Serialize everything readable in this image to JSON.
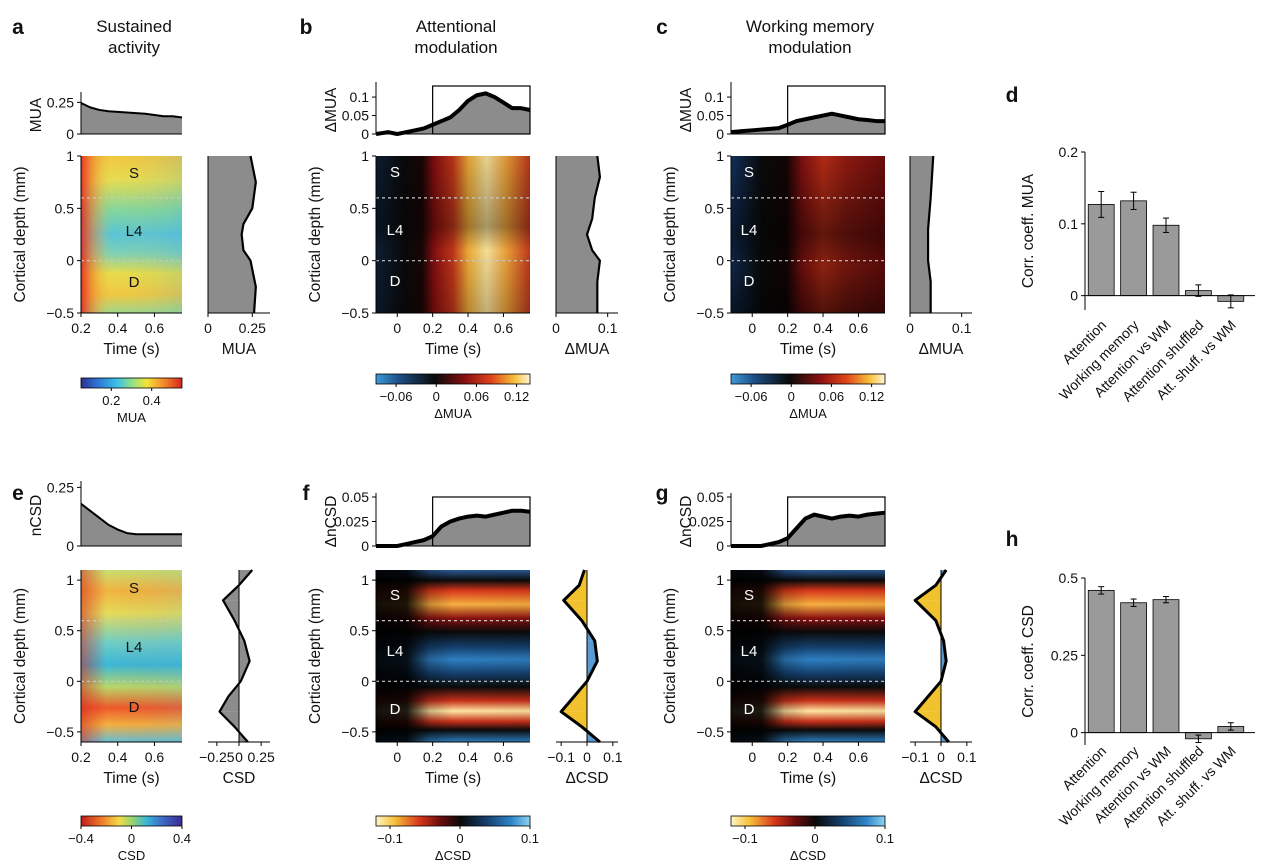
{
  "figure": {
    "columns": [
      {
        "letter": "a",
        "title": [
          "Sustained",
          "activity"
        ]
      },
      {
        "letter": "b",
        "title": [
          "Attentional",
          "modulation"
        ]
      },
      {
        "letter": "c",
        "title": [
          "Working memory",
          "modulation"
        ]
      }
    ],
    "row_letters": {
      "d": "d",
      "e": "e",
      "f": "f",
      "g": "g",
      "h": "h"
    },
    "layers": [
      "S",
      "L4",
      "D"
    ],
    "colors": {
      "profile_fill": "#8c8c8c",
      "sink_fill": "#f2c12e",
      "source_fill": "#5b9bd5",
      "bar_fill": "#9a9a9a",
      "dashed_line": "#c8c8c8"
    }
  },
  "chart_data": [
    {
      "id": "a-top",
      "type": "area",
      "ylabel": "MUA",
      "x": [
        0.2,
        0.25,
        0.3,
        0.35,
        0.4,
        0.45,
        0.5,
        0.55,
        0.6,
        0.65,
        0.7,
        0.75
      ],
      "y": [
        0.245,
        0.21,
        0.19,
        0.18,
        0.175,
        0.17,
        0.165,
        0.16,
        0.15,
        0.14,
        0.14,
        0.13
      ],
      "xlim": [
        0.2,
        0.75
      ],
      "ylim": [
        0,
        0.3
      ],
      "yticks": [
        "0",
        "0.25"
      ]
    },
    {
      "id": "a-map",
      "type": "heatmap",
      "xlabel": "Time (s)",
      "ylabel": "Cortical depth (mm)",
      "xticks": [
        "0.2",
        "0.4",
        "0.6"
      ],
      "yticks": [
        "1",
        "0.5",
        "0",
        "−0.5"
      ],
      "xlim": [
        0.2,
        0.75
      ],
      "ylim": [
        -0.5,
        1
      ],
      "layer_boundaries_mm": [
        0.6,
        0
      ],
      "colormap": "jet",
      "colorbar": {
        "ticks": [
          "0.2",
          "0.4"
        ],
        "label": "MUA",
        "range": [
          0.05,
          0.55
        ]
      }
    },
    {
      "id": "a-profile",
      "type": "area",
      "xlabel": "MUA",
      "xticks": [
        "0",
        "0.25"
      ],
      "depth": [
        1,
        0.75,
        0.5,
        0.35,
        0.25,
        0.1,
        0,
        -0.25,
        -0.5
      ],
      "values": [
        0.24,
        0.27,
        0.25,
        0.2,
        0.19,
        0.2,
        0.24,
        0.27,
        0.26
      ],
      "xlim": [
        0,
        0.35
      ]
    },
    {
      "id": "b-top",
      "type": "area",
      "ylabel": "ΔMUA",
      "x": [
        -0.12,
        -0.05,
        0,
        0.05,
        0.1,
        0.15,
        0.2,
        0.25,
        0.3,
        0.35,
        0.4,
        0.45,
        0.5,
        0.55,
        0.6,
        0.65,
        0.7,
        0.75
      ],
      "y": [
        0,
        0.005,
        0,
        0.005,
        0.01,
        0.015,
        0.025,
        0.035,
        0.045,
        0.065,
        0.09,
        0.105,
        0.11,
        0.1,
        0.085,
        0.07,
        0.07,
        0.065
      ],
      "xlim": [
        -0.12,
        0.75
      ],
      "ylim": [
        0,
        0.13
      ],
      "yticks": [
        "0",
        "0.05",
        "0.1"
      ],
      "highlight_window": [
        0.2,
        0.75
      ]
    },
    {
      "id": "b-map",
      "type": "heatmap",
      "xlabel": "Time (s)",
      "ylabel": "Cortical depth (mm)",
      "xticks": [
        "0",
        "0.2",
        "0.4",
        "0.6"
      ],
      "yticks": [
        "1",
        "0.5",
        "0",
        "−0.5"
      ],
      "xlim": [
        -0.12,
        0.75
      ],
      "ylim": [
        -0.5,
        1
      ],
      "layer_boundaries_mm": [
        0.6,
        0
      ],
      "colormap": "blue-black-hot",
      "colorbar": {
        "ticks": [
          "−0.06",
          "0",
          "0.06",
          "0.12"
        ],
        "label": "ΔMUA",
        "range": [
          -0.09,
          0.14
        ]
      }
    },
    {
      "id": "b-profile",
      "type": "area",
      "xlabel": "ΔMUA",
      "xticks": [
        "0",
        "0.1"
      ],
      "depth": [
        1,
        0.8,
        0.6,
        0.4,
        0.25,
        0.1,
        0,
        -0.2,
        -0.5
      ],
      "values": [
        0.08,
        0.085,
        0.075,
        0.07,
        0.06,
        0.07,
        0.085,
        0.08,
        0.08
      ],
      "xlim": [
        0,
        0.12
      ]
    },
    {
      "id": "c-top",
      "type": "area",
      "ylabel": "ΔMUA",
      "x": [
        -0.12,
        -0.05,
        0,
        0.05,
        0.1,
        0.15,
        0.2,
        0.25,
        0.3,
        0.35,
        0.4,
        0.45,
        0.5,
        0.55,
        0.6,
        0.65,
        0.7,
        0.75
      ],
      "y": [
        0.005,
        0.008,
        0.01,
        0.012,
        0.014,
        0.016,
        0.025,
        0.035,
        0.04,
        0.045,
        0.05,
        0.055,
        0.05,
        0.045,
        0.04,
        0.038,
        0.035,
        0.035
      ],
      "xlim": [
        -0.12,
        0.75
      ],
      "ylim": [
        0,
        0.13
      ],
      "yticks": [
        "0",
        "0.05",
        "0.1"
      ],
      "highlight_window": [
        0.2,
        0.75
      ]
    },
    {
      "id": "c-map",
      "type": "heatmap",
      "xlabel": "Time (s)",
      "ylabel": "Cortical depth (mm)",
      "xticks": [
        "0",
        "0.2",
        "0.4",
        "0.6"
      ],
      "yticks": [
        "1",
        "0.5",
        "0",
        "−0.5"
      ],
      "xlim": [
        -0.12,
        0.75
      ],
      "ylim": [
        -0.5,
        1
      ],
      "layer_boundaries_mm": [
        0.6,
        0
      ],
      "colormap": "blue-black-hot",
      "colorbar": {
        "ticks": [
          "−0.06",
          "0",
          "0.06",
          "0.12"
        ],
        "label": "ΔMUA",
        "range": [
          -0.09,
          0.14
        ]
      }
    },
    {
      "id": "c-profile",
      "type": "area",
      "xlabel": "ΔMUA",
      "xticks": [
        "0",
        "0.1"
      ],
      "depth": [
        1,
        0.6,
        0.3,
        0.15,
        0,
        -0.2,
        -0.5
      ],
      "values": [
        0.045,
        0.04,
        0.035,
        0.035,
        0.035,
        0.04,
        0.04
      ],
      "xlim": [
        0,
        0.12
      ]
    },
    {
      "id": "d-bars",
      "type": "bar",
      "ylabel": "Corr. coeff. MUA",
      "categories": [
        "Attention",
        "Working memory",
        "Attention vs WM",
        "Attention shuffled",
        "Att. shuff. vs WM"
      ],
      "values": [
        0.127,
        0.132,
        0.098,
        0.007,
        -0.008
      ],
      "errors": [
        0.018,
        0.012,
        0.01,
        0.008,
        0.009
      ],
      "ylim": [
        -0.02,
        0.2
      ],
      "ytick_values": [
        0,
        0.1,
        0.2
      ],
      "yticks": [
        "0",
        "0.1",
        "0.2"
      ]
    },
    {
      "id": "e-top",
      "type": "area",
      "ylabel": "nCSD",
      "x": [
        0.2,
        0.25,
        0.3,
        0.35,
        0.4,
        0.45,
        0.5,
        0.55,
        0.6,
        0.65,
        0.7,
        0.75
      ],
      "y": [
        0.18,
        0.15,
        0.12,
        0.09,
        0.07,
        0.055,
        0.05,
        0.05,
        0.05,
        0.05,
        0.05,
        0.05
      ],
      "xlim": [
        0.2,
        0.75
      ],
      "ylim": [
        0,
        0.26
      ],
      "yticks": [
        "0",
        "0.25"
      ]
    },
    {
      "id": "e-map",
      "type": "heatmap",
      "xlabel": "Time (s)",
      "ylabel": "Cortical depth (mm)",
      "xticks": [
        "0.2",
        "0.4",
        "0.6"
      ],
      "yticks": [
        "1",
        "0.5",
        "0",
        "−0.5"
      ],
      "xlim": [
        0.2,
        0.75
      ],
      "ylim": [
        -0.6,
        1.1
      ],
      "layer_boundaries_mm": [
        0.6,
        0
      ],
      "colormap": "red-yellow-green-blue",
      "colorbar": {
        "ticks": [
          "−0.4",
          "0",
          "0.4"
        ],
        "label": "CSD",
        "range": [
          -0.4,
          0.4
        ]
      }
    },
    {
      "id": "e-profile",
      "type": "area",
      "xlabel": "CSD",
      "xticks": [
        "−0.25",
        "0",
        "0.25"
      ],
      "depth": [
        1.1,
        0.95,
        0.8,
        0.6,
        0.4,
        0.2,
        0,
        -0.15,
        -0.3,
        -0.45,
        -0.6
      ],
      "values": [
        0.15,
        0.0,
        -0.18,
        -0.05,
        0.06,
        0.12,
        0.02,
        -0.12,
        -0.22,
        -0.05,
        0.1
      ],
      "xlim": [
        -0.35,
        0.35
      ]
    },
    {
      "id": "f-top",
      "type": "area",
      "ylabel": "ΔnCSD",
      "x": [
        -0.12,
        -0.05,
        0,
        0.05,
        0.1,
        0.15,
        0.2,
        0.25,
        0.3,
        0.35,
        0.4,
        0.45,
        0.5,
        0.55,
        0.6,
        0.65,
        0.7,
        0.75
      ],
      "y": [
        0,
        0,
        0,
        0.002,
        0.004,
        0.006,
        0.01,
        0.02,
        0.025,
        0.028,
        0.03,
        0.031,
        0.03,
        0.032,
        0.034,
        0.036,
        0.036,
        0.035
      ],
      "xlim": [
        -0.12,
        0.75
      ],
      "ylim": [
        0,
        0.05
      ],
      "yticks": [
        "0",
        "0.025",
        "0.05"
      ],
      "highlight_window": [
        0.2,
        0.75
      ]
    },
    {
      "id": "f-map",
      "type": "heatmap",
      "xlabel": "Time (s)",
      "ylabel": "Cortical depth (mm)",
      "xticks": [
        "0",
        "0.2",
        "0.4",
        "0.6"
      ],
      "yticks": [
        "1",
        "0.5",
        "0",
        "−0.5"
      ],
      "xlim": [
        -0.12,
        0.75
      ],
      "ylim": [
        -0.6,
        1.1
      ],
      "layer_boundaries_mm": [
        0.6,
        0
      ],
      "colormap": "hot-black-blue",
      "colorbar": {
        "ticks": [
          "−0.1",
          "0",
          "0.1"
        ],
        "label": "ΔCSD",
        "range": [
          -0.12,
          0.1
        ]
      }
    },
    {
      "id": "f-profile",
      "type": "area",
      "xlabel": "ΔCSD",
      "xticks": [
        "−0.1",
        "0",
        "0.1"
      ],
      "depth": [
        1.1,
        0.95,
        0.8,
        0.6,
        0.4,
        0.2,
        0,
        -0.15,
        -0.3,
        -0.45,
        -0.6
      ],
      "values": [
        -0.01,
        -0.03,
        -0.09,
        -0.02,
        0.03,
        0.04,
        0.0,
        -0.05,
        -0.1,
        -0.02,
        0.05
      ],
      "xlim": [
        -0.12,
        0.12
      ]
    },
    {
      "id": "g-top",
      "type": "area",
      "ylabel": "ΔnCSD",
      "x": [
        -0.12,
        -0.05,
        0,
        0.05,
        0.1,
        0.15,
        0.2,
        0.25,
        0.3,
        0.35,
        0.4,
        0.45,
        0.5,
        0.55,
        0.6,
        0.65,
        0.7,
        0.75
      ],
      "y": [
        0,
        0,
        0,
        0,
        0.002,
        0.004,
        0.008,
        0.018,
        0.028,
        0.032,
        0.03,
        0.028,
        0.03,
        0.031,
        0.03,
        0.032,
        0.033,
        0.034
      ],
      "xlim": [
        -0.12,
        0.75
      ],
      "ylim": [
        0,
        0.05
      ],
      "yticks": [
        "0",
        "0.025",
        "0.05"
      ],
      "highlight_window": [
        0.2,
        0.75
      ]
    },
    {
      "id": "g-map",
      "type": "heatmap",
      "xlabel": "Time (s)",
      "ylabel": "Cortical depth (mm)",
      "xticks": [
        "0",
        "0.2",
        "0.4",
        "0.6"
      ],
      "yticks": [
        "1",
        "0.5",
        "0",
        "−0.5"
      ],
      "xlim": [
        -0.12,
        0.75
      ],
      "ylim": [
        -0.6,
        1.1
      ],
      "layer_boundaries_mm": [
        0.6,
        0
      ],
      "colormap": "hot-black-blue",
      "colorbar": {
        "ticks": [
          "−0.1",
          "0",
          "0.1"
        ],
        "label": "ΔCSD",
        "range": [
          -0.12,
          0.1
        ]
      }
    },
    {
      "id": "g-profile",
      "type": "area",
      "xlabel": "ΔCSD",
      "xticks": [
        "−0.1",
        "0",
        "0.1"
      ],
      "depth": [
        1.1,
        0.95,
        0.8,
        0.6,
        0.4,
        0.2,
        0,
        -0.15,
        -0.3,
        -0.45,
        -0.6
      ],
      "values": [
        0.02,
        -0.02,
        -0.1,
        -0.02,
        0.01,
        0.02,
        0.0,
        -0.05,
        -0.1,
        -0.02,
        0.03
      ],
      "xlim": [
        -0.12,
        0.12
      ]
    },
    {
      "id": "h-bars",
      "type": "bar",
      "ylabel": "Corr. coeff. CSD",
      "categories": [
        "Attention",
        "Working memory",
        "Attention vs WM",
        "Attention shuffled",
        "Att. shuff. vs WM"
      ],
      "values": [
        0.46,
        0.42,
        0.43,
        -0.02,
        0.02
      ],
      "errors": [
        0.012,
        0.012,
        0.01,
        0.012,
        0.012
      ],
      "ylim": [
        -0.04,
        0.5
      ],
      "ytick_values": [
        0,
        0.25,
        0.5
      ],
      "yticks": [
        "0",
        "0.25",
        "0.5"
      ]
    }
  ]
}
